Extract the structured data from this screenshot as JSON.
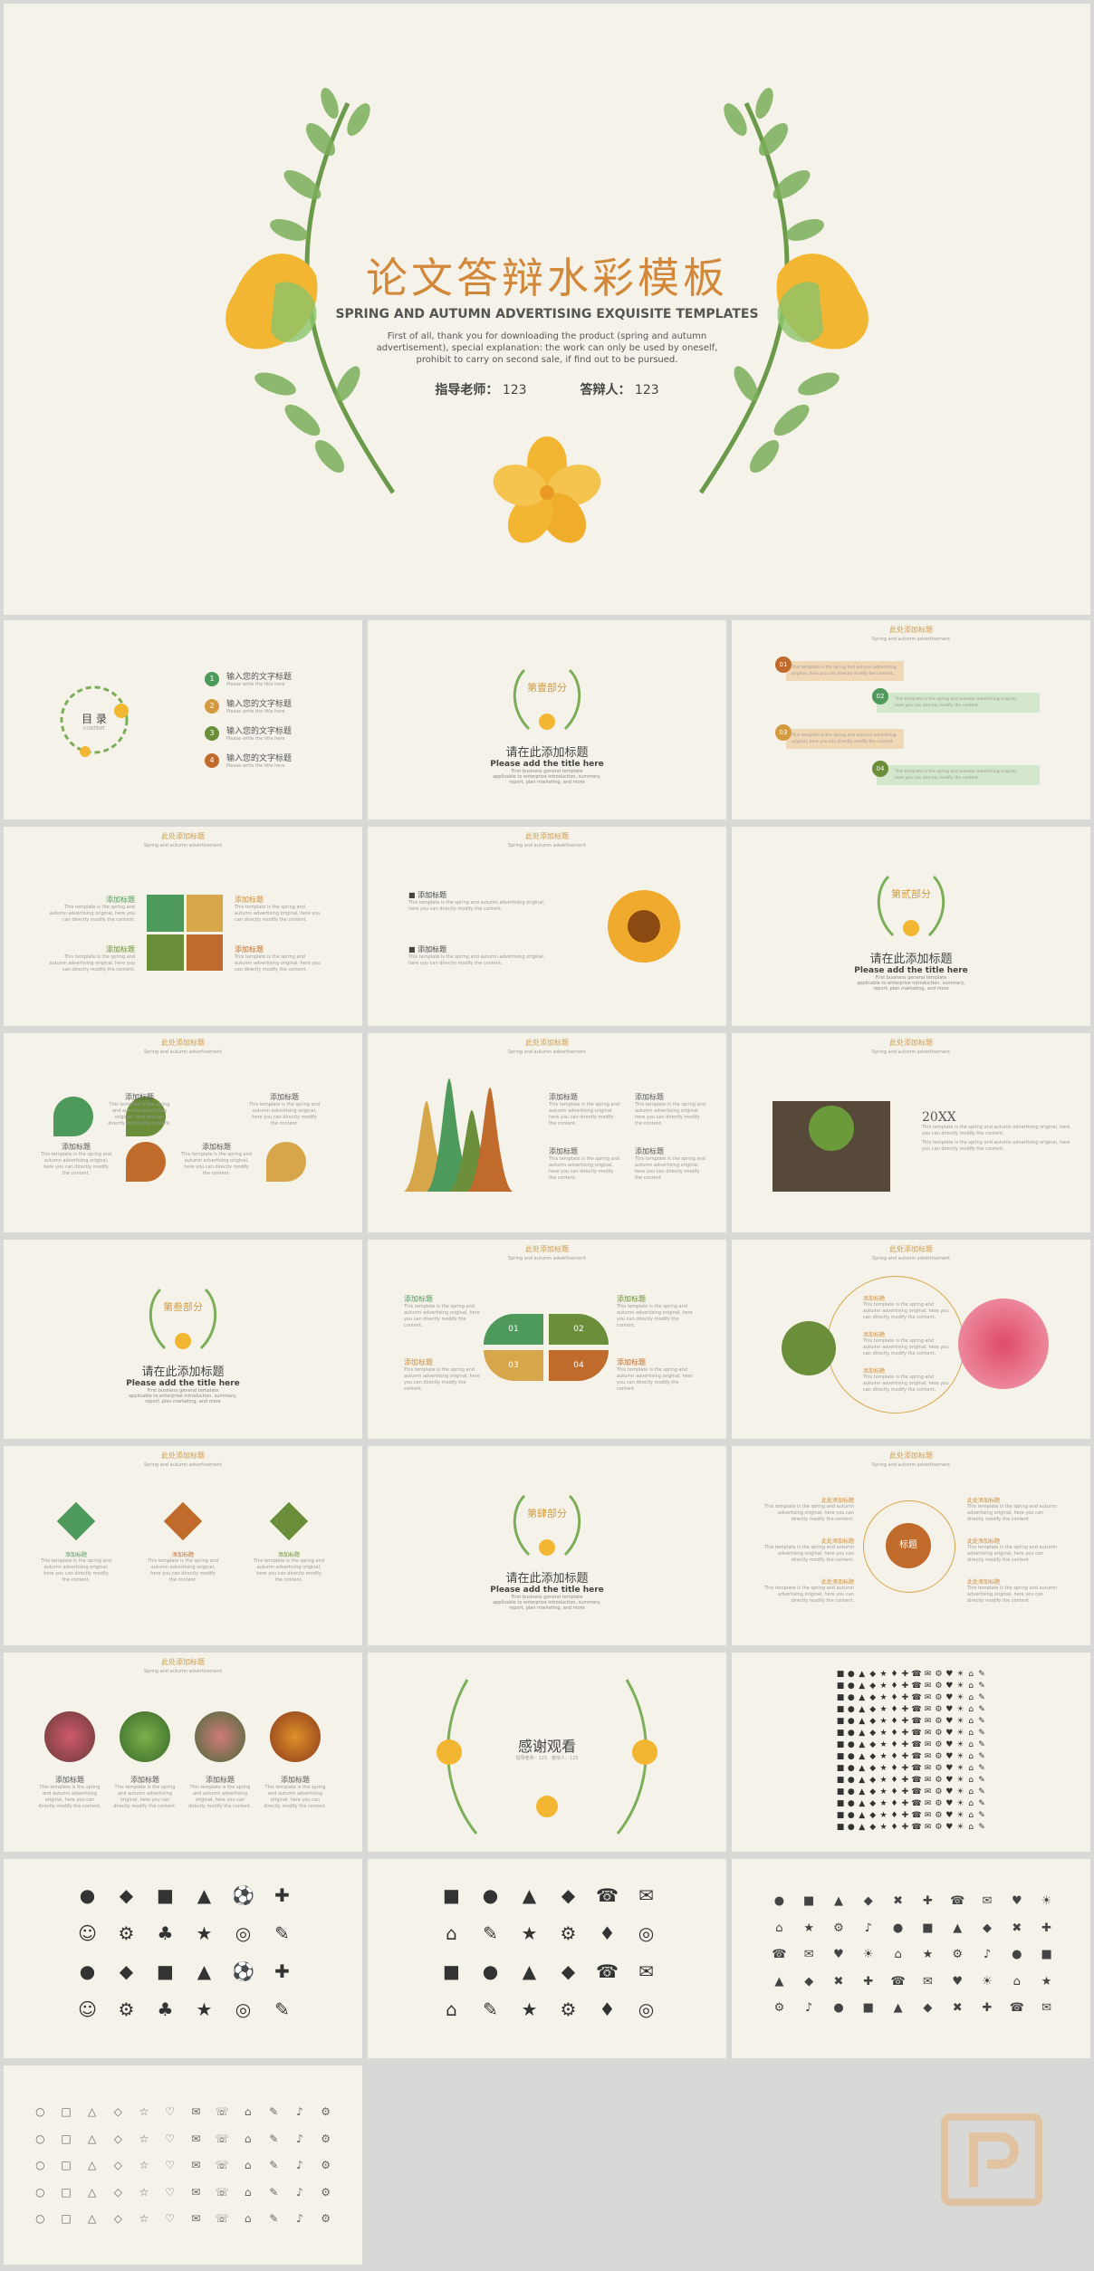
{
  "colors": {
    "bg": "#f5f3e9",
    "orange": "#d49a3f",
    "green": "#4e9a5c",
    "olive": "#6b8e3a",
    "rust": "#c06a2b",
    "gold": "#d7a64a",
    "text": "#555555"
  },
  "cover": {
    "title": "论文答辩水彩模板",
    "subtitle": "SPRING AND AUTUMN ADVERTISING EXQUISITE TEMPLATES",
    "desc1": "First of all, thank you for downloading the product (spring and autumn",
    "desc2": "advertisement), special explanation: the work can only be used by oneself,",
    "desc3": "prohibit to carry on second sale, if find out to be pursued.",
    "teacher_label": "指导老师：",
    "teacher": "123",
    "student_label": "答辩人：",
    "student": "123"
  },
  "toc": {
    "title": "目 录",
    "title_en": "CONTENT",
    "items": [
      {
        "num": "1",
        "text": "输入您的文字标题",
        "sub": "Please write the title here"
      },
      {
        "num": "2",
        "text": "输入您的文字标题",
        "sub": "Please write the title here"
      },
      {
        "num": "3",
        "text": "输入您的文字标题",
        "sub": "Please write the title here"
      },
      {
        "num": "4",
        "text": "输入您的文字标题",
        "sub": "Please write the title here"
      }
    ]
  },
  "header": {
    "zh": "此处添加标题",
    "en": "Spring and autumn advertisement"
  },
  "section_common": {
    "title": "请在此添加标题",
    "title_en": "Please add the title here",
    "d1": "First business general template",
    "d2": "applicable to enterprise introduction, summary,",
    "d3": "report, plan marketing, and more"
  },
  "sections": [
    "第壹部分",
    "第贰部分",
    "第叁部分",
    "第肆部分"
  ],
  "add_title": "添加标题",
  "body_text": "This template is the spring and autumn advertising original, here you can directly modify the content.",
  "flow_items": [
    "01",
    "02",
    "03",
    "04"
  ],
  "flow_text": "This template is the spring and autumn advertising original, here you can directly modify the content.",
  "year": "20XX",
  "quad": [
    "01",
    "02",
    "03",
    "04"
  ],
  "center_label": "标题",
  "thanks": {
    "title": "感谢观看",
    "teacher": "指导老师：123",
    "student": "答辩人：123"
  }
}
